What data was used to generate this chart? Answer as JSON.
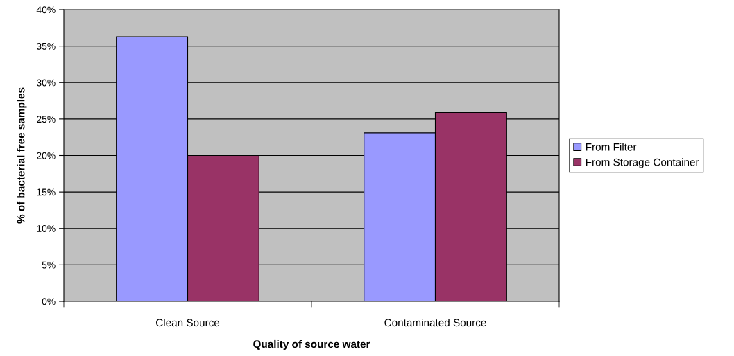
{
  "chart_data": {
    "type": "bar",
    "xlabel": "Quality of source water",
    "ylabel": "% of bacterial free samples",
    "categories": [
      "Clean Source",
      "Contaminated Source"
    ],
    "series": [
      {
        "name": "From Filter",
        "color": "#9999ff",
        "values": [
          36.3,
          23.1
        ]
      },
      {
        "name": "From Storage Container",
        "color": "#993366",
        "values": [
          20.0,
          25.9
        ]
      }
    ],
    "ylim": [
      0,
      40
    ],
    "yticks": [
      {
        "value": 0,
        "label": "0%"
      },
      {
        "value": 5,
        "label": "5%"
      },
      {
        "value": 10,
        "label": "10%"
      },
      {
        "value": 15,
        "label": "15%"
      },
      {
        "value": 20,
        "label": "20%"
      },
      {
        "value": 25,
        "label": "25%"
      },
      {
        "value": 30,
        "label": "30%"
      },
      {
        "value": 35,
        "label": "35%"
      },
      {
        "value": 40,
        "label": "40%"
      }
    ],
    "grid": "y",
    "legend": "right"
  }
}
